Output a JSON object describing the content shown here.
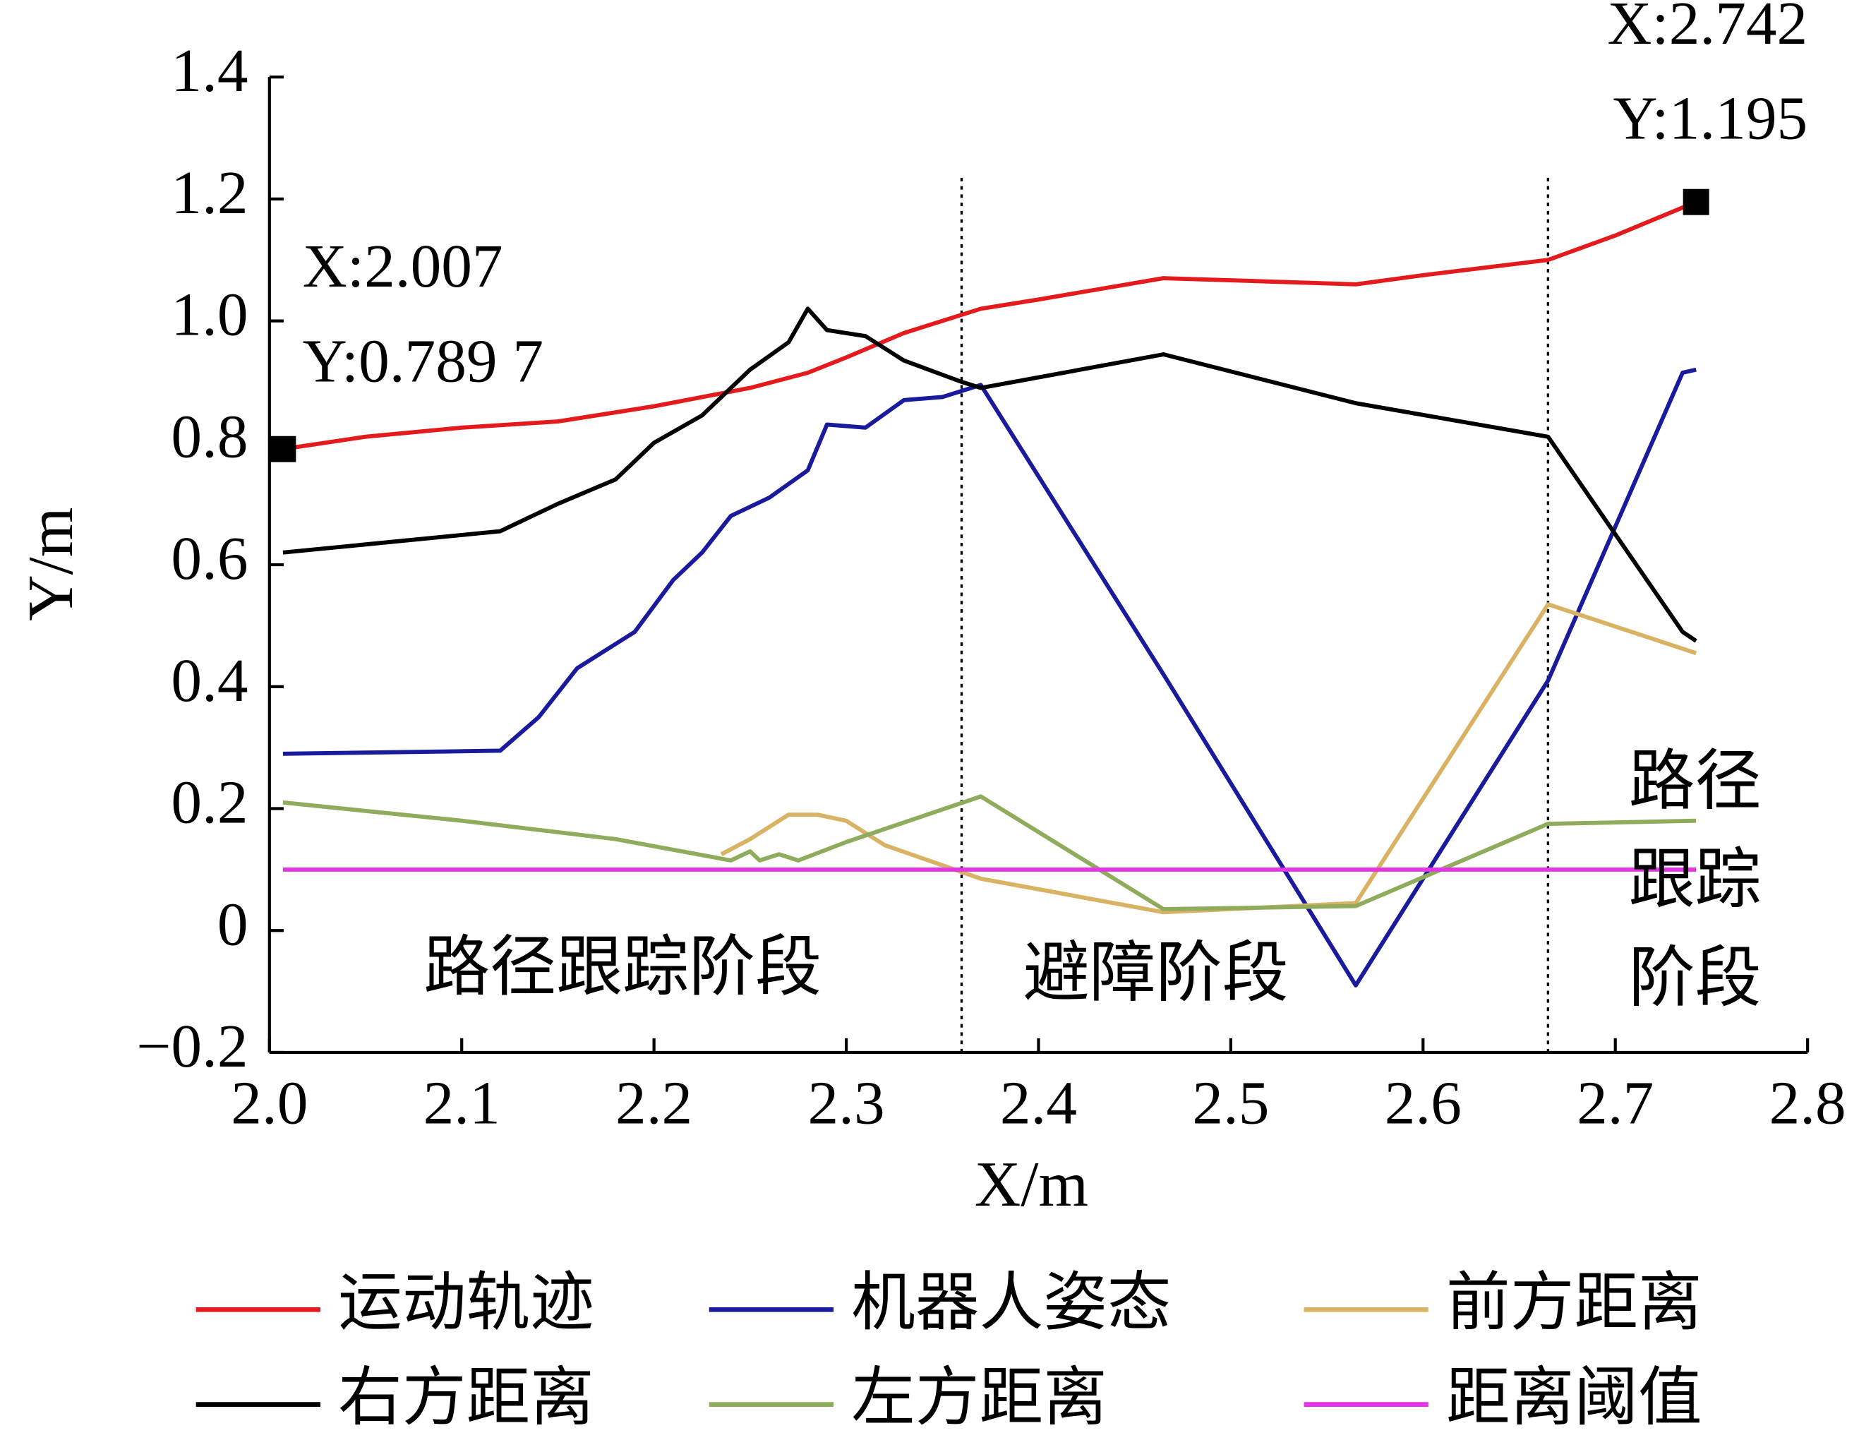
{
  "chart_data": {
    "type": "line",
    "xlabel": "X/m",
    "ylabel": "Y/m",
    "xlim": [
      2.0,
      2.8
    ],
    "ylim": [
      -0.2,
      1.4
    ],
    "xticks": [
      {
        "value": 2.0,
        "label": "2.0"
      },
      2.1,
      2.2,
      2.3,
      2.4,
      2.5,
      2.6,
      2.7,
      {
        "value": 2.8,
        "label": "2.8"
      }
    ],
    "yticks": [
      {
        "value": -0.2,
        "label": "−0.2"
      },
      0,
      0.2,
      0.4,
      0.6,
      0.8,
      {
        "value": 1.0,
        "label": "1.0"
      },
      1.2,
      1.4
    ],
    "series": [
      {
        "name": "运动轨迹",
        "color": "#e41a1c",
        "x": [
          2.007,
          2.05,
          2.1,
          2.15,
          2.2,
          2.25,
          2.28,
          2.3,
          2.33,
          2.37,
          2.4,
          2.465,
          2.565,
          2.6,
          2.665,
          2.7,
          2.742
        ],
        "values": [
          0.7897,
          0.81,
          0.825,
          0.835,
          0.86,
          0.89,
          0.915,
          0.94,
          0.98,
          1.02,
          1.035,
          1.07,
          1.06,
          1.075,
          1.1,
          1.14,
          1.195
        ]
      },
      {
        "name": "机器人姿态",
        "color": "#1a1a9c",
        "x": [
          2.007,
          2.12,
          2.14,
          2.16,
          2.19,
          2.21,
          2.225,
          2.24,
          2.26,
          2.28,
          2.29,
          2.31,
          2.33,
          2.35,
          2.37,
          2.465,
          2.565,
          2.665,
          2.735,
          2.742
        ],
        "values": [
          0.29,
          0.295,
          0.35,
          0.43,
          0.49,
          0.575,
          0.62,
          0.68,
          0.71,
          0.755,
          0.83,
          0.825,
          0.87,
          0.875,
          0.895,
          0.42,
          -0.09,
          0.41,
          0.915,
          0.92
        ]
      },
      {
        "name": "前方距离",
        "color": "#d9b264",
        "x": [
          2.235,
          2.25,
          2.27,
          2.285,
          2.3,
          2.32,
          2.37,
          2.465,
          2.565,
          2.665,
          2.742
        ],
        "values": [
          0.125,
          0.15,
          0.19,
          0.19,
          0.18,
          0.14,
          0.085,
          0.03,
          0.045,
          0.535,
          0.455
        ]
      },
      {
        "name": "右方距离",
        "color": "#000000",
        "x": [
          2.007,
          2.12,
          2.15,
          2.18,
          2.2,
          2.225,
          2.25,
          2.27,
          2.28,
          2.29,
          2.31,
          2.33,
          2.36,
          2.37,
          2.465,
          2.565,
          2.665,
          2.735,
          2.742
        ],
        "values": [
          0.62,
          0.655,
          0.7,
          0.74,
          0.8,
          0.845,
          0.92,
          0.965,
          1.02,
          0.985,
          0.975,
          0.935,
          0.9,
          0.89,
          0.945,
          0.865,
          0.81,
          0.49,
          0.475
        ]
      },
      {
        "name": "左方距离",
        "color": "#8fac5c",
        "x": [
          2.007,
          2.1,
          2.18,
          2.24,
          2.25,
          2.255,
          2.265,
          2.275,
          2.3,
          2.37,
          2.465,
          2.565,
          2.665,
          2.742
        ],
        "values": [
          0.21,
          0.18,
          0.15,
          0.115,
          0.13,
          0.115,
          0.125,
          0.115,
          0.145,
          0.22,
          0.035,
          0.04,
          0.175,
          0.18
        ]
      },
      {
        "name": "距离阈值",
        "color": "#e633e6",
        "x": [
          2.007,
          2.742
        ],
        "values": [
          0.1,
          0.1
        ]
      }
    ],
    "phase_boundaries": [
      2.36,
      2.665
    ],
    "phases": [
      [
        "路径跟踪阶段"
      ],
      [
        "避障阶段"
      ],
      [
        "路径",
        "跟踪",
        "阶段"
      ]
    ],
    "annotations": [
      {
        "x": 2.007,
        "y": 0.7897,
        "text": [
          "X:2.007",
          "Y:0.789 7"
        ]
      },
      {
        "x": 2.742,
        "y": 1.195,
        "text": [
          "X:2.742",
          "Y:1.195"
        ]
      }
    ]
  }
}
